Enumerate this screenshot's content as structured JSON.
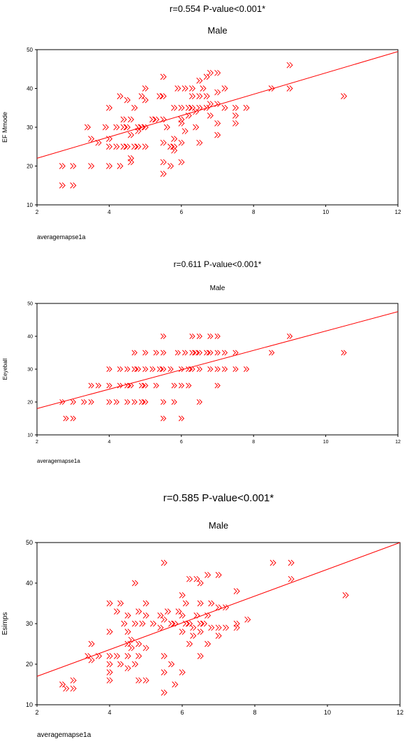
{
  "chart_data": [
    {
      "type": "scatter",
      "stat_line": "r=0.554     P-value<0.001*",
      "title": "Male",
      "xlabel": "averagemapse1a",
      "ylabel": "EF Mmode",
      "xlim": [
        2,
        12
      ],
      "ylim": [
        10,
        50
      ],
      "xticks": [
        "2",
        "4",
        "6",
        "8",
        "10",
        "12"
      ],
      "yticks": [
        "10",
        "20",
        "30",
        "40",
        "50"
      ],
      "color": "#ff0000",
      "fit_line": [
        [
          2,
          22
        ],
        [
          12,
          49.5
        ]
      ],
      "points": [
        [
          2.7,
          20
        ],
        [
          2.7,
          15
        ],
        [
          3,
          20
        ],
        [
          3,
          15
        ],
        [
          3.4,
          30
        ],
        [
          3.5,
          20
        ],
        [
          3.5,
          27
        ],
        [
          3.7,
          26
        ],
        [
          3.9,
          30
        ],
        [
          4,
          35
        ],
        [
          4,
          27
        ],
        [
          4,
          25
        ],
        [
          4,
          20
        ],
        [
          4.2,
          30
        ],
        [
          4.2,
          25
        ],
        [
          4.3,
          38
        ],
        [
          4.3,
          20
        ],
        [
          4.4,
          32
        ],
        [
          4.4,
          30
        ],
        [
          4.4,
          25
        ],
        [
          4.5,
          37
        ],
        [
          4.5,
          30
        ],
        [
          4.5,
          25
        ],
        [
          4.6,
          32
        ],
        [
          4.6,
          28
        ],
        [
          4.6,
          22
        ],
        [
          4.6,
          21
        ],
        [
          4.7,
          35
        ],
        [
          4.7,
          25
        ],
        [
          4.8,
          30
        ],
        [
          4.8,
          29
        ],
        [
          4.8,
          25
        ],
        [
          4.9,
          38
        ],
        [
          4.9,
          30
        ],
        [
          5,
          40
        ],
        [
          5,
          37
        ],
        [
          5,
          30
        ],
        [
          5,
          25
        ],
        [
          5.2,
          32
        ],
        [
          5.3,
          32
        ],
        [
          5.4,
          38
        ],
        [
          5.5,
          43
        ],
        [
          5.5,
          38
        ],
        [
          5.5,
          32
        ],
        [
          5.5,
          26
        ],
        [
          5.5,
          21
        ],
        [
          5.5,
          18
        ],
        [
          5.6,
          30
        ],
        [
          5.7,
          25
        ],
        [
          5.7,
          20
        ],
        [
          5.8,
          35
        ],
        [
          5.8,
          27
        ],
        [
          5.8,
          25
        ],
        [
          5.8,
          24
        ],
        [
          5.9,
          40
        ],
        [
          6,
          35
        ],
        [
          6,
          32
        ],
        [
          6,
          31
        ],
        [
          6,
          26
        ],
        [
          6,
          21
        ],
        [
          6.1,
          40
        ],
        [
          6.1,
          29
        ],
        [
          6.2,
          35
        ],
        [
          6.2,
          33
        ],
        [
          6.3,
          40
        ],
        [
          6.3,
          38
        ],
        [
          6.3,
          35
        ],
        [
          6.4,
          34
        ],
        [
          6.4,
          30
        ],
        [
          6.5,
          42
        ],
        [
          6.5,
          38
        ],
        [
          6.5,
          35
        ],
        [
          6.5,
          26
        ],
        [
          6.6,
          40
        ],
        [
          6.7,
          43
        ],
        [
          6.7,
          38
        ],
        [
          6.7,
          35
        ],
        [
          6.8,
          44
        ],
        [
          6.8,
          36
        ],
        [
          6.8,
          33
        ],
        [
          7,
          44
        ],
        [
          7,
          39
        ],
        [
          7,
          36
        ],
        [
          7,
          31
        ],
        [
          7,
          28
        ],
        [
          7.2,
          40
        ],
        [
          7.2,
          35
        ],
        [
          7.5,
          35
        ],
        [
          7.5,
          33
        ],
        [
          7.5,
          31
        ],
        [
          7.8,
          35
        ],
        [
          8.5,
          40
        ],
        [
          9,
          46
        ],
        [
          9,
          40
        ],
        [
          10.5,
          38
        ]
      ]
    },
    {
      "type": "scatter",
      "stat_line": "r=0.611     P-value<0.001*",
      "title": "Male",
      "xlabel": "averagemapse1a",
      "ylabel": "Eeyeball",
      "xlim": [
        2,
        12
      ],
      "ylim": [
        10,
        50
      ],
      "xticks": [
        "2",
        "4",
        "6",
        "8",
        "10",
        "12"
      ],
      "yticks": [
        "10",
        "20",
        "30",
        "40",
        "50"
      ],
      "color": "#ff0000",
      "fit_line": [
        [
          2,
          18
        ],
        [
          12,
          47.5
        ]
      ],
      "points": [
        [
          2.7,
          20
        ],
        [
          2.8,
          15
        ],
        [
          3,
          20
        ],
        [
          3,
          15
        ],
        [
          3.3,
          20
        ],
        [
          3.5,
          25
        ],
        [
          3.5,
          20
        ],
        [
          3.7,
          25
        ],
        [
          4,
          30
        ],
        [
          4,
          25
        ],
        [
          4,
          20
        ],
        [
          4.2,
          20
        ],
        [
          4.3,
          30
        ],
        [
          4.3,
          25
        ],
        [
          4.5,
          30
        ],
        [
          4.5,
          25
        ],
        [
          4.5,
          20
        ],
        [
          4.6,
          25
        ],
        [
          4.7,
          35
        ],
        [
          4.7,
          30
        ],
        [
          4.7,
          20
        ],
        [
          4.8,
          30
        ],
        [
          4.9,
          25
        ],
        [
          4.9,
          20
        ],
        [
          5,
          35
        ],
        [
          5,
          30
        ],
        [
          5,
          25
        ],
        [
          5,
          20
        ],
        [
          5.2,
          30
        ],
        [
          5.3,
          35
        ],
        [
          5.3,
          25
        ],
        [
          5.4,
          30
        ],
        [
          5.5,
          40
        ],
        [
          5.5,
          35
        ],
        [
          5.5,
          30
        ],
        [
          5.5,
          20
        ],
        [
          5.5,
          15
        ],
        [
          5.7,
          30
        ],
        [
          5.8,
          25
        ],
        [
          5.8,
          20
        ],
        [
          5.9,
          35
        ],
        [
          6,
          30
        ],
        [
          6,
          25
        ],
        [
          6,
          15
        ],
        [
          6.1,
          35
        ],
        [
          6.2,
          30
        ],
        [
          6.2,
          25
        ],
        [
          6.3,
          40
        ],
        [
          6.3,
          35
        ],
        [
          6.3,
          30
        ],
        [
          6.4,
          35
        ],
        [
          6.5,
          40
        ],
        [
          6.5,
          35
        ],
        [
          6.5,
          30
        ],
        [
          6.5,
          20
        ],
        [
          6.7,
          35
        ],
        [
          6.8,
          40
        ],
        [
          6.8,
          35
        ],
        [
          6.8,
          30
        ],
        [
          7,
          40
        ],
        [
          7,
          35
        ],
        [
          7,
          30
        ],
        [
          7,
          25
        ],
        [
          7.2,
          35
        ],
        [
          7.2,
          30
        ],
        [
          7.5,
          35
        ],
        [
          7.5,
          30
        ],
        [
          7.8,
          30
        ],
        [
          8.5,
          35
        ],
        [
          9,
          40
        ],
        [
          10.5,
          35
        ]
      ]
    },
    {
      "type": "scatter",
      "stat_line": "r=0.585     P-value<0.001*",
      "title": "Male",
      "xlabel": "averagemapse1a",
      "ylabel": "Esimps",
      "xlim": [
        2,
        12
      ],
      "ylim": [
        10,
        50
      ],
      "xticks": [
        "2",
        "4",
        "6",
        "8",
        "10",
        "12"
      ],
      "yticks": [
        "10",
        "20",
        "30",
        "40",
        "50"
      ],
      "color": "#ff0000",
      "fit_line": [
        [
          2,
          17
        ],
        [
          12,
          50
        ]
      ],
      "points": [
        [
          2.7,
          15
        ],
        [
          2.8,
          14
        ],
        [
          3,
          16
        ],
        [
          3,
          14
        ],
        [
          3.4,
          22
        ],
        [
          3.5,
          25
        ],
        [
          3.5,
          21
        ],
        [
          3.7,
          22
        ],
        [
          4,
          35
        ],
        [
          4,
          28
        ],
        [
          4,
          22
        ],
        [
          4,
          20
        ],
        [
          4,
          18
        ],
        [
          4,
          16
        ],
        [
          4.2,
          33
        ],
        [
          4.2,
          22
        ],
        [
          4.3,
          35
        ],
        [
          4.3,
          20
        ],
        [
          4.4,
          30
        ],
        [
          4.5,
          32
        ],
        [
          4.5,
          28
        ],
        [
          4.5,
          25
        ],
        [
          4.5,
          22
        ],
        [
          4.5,
          19
        ],
        [
          4.6,
          26
        ],
        [
          4.6,
          24
        ],
        [
          4.7,
          40
        ],
        [
          4.7,
          30
        ],
        [
          4.7,
          20
        ],
        [
          4.8,
          33
        ],
        [
          4.8,
          25
        ],
        [
          4.8,
          22
        ],
        [
          4.8,
          16
        ],
        [
          4.9,
          30
        ],
        [
          5,
          35
        ],
        [
          5,
          32
        ],
        [
          5,
          24
        ],
        [
          5,
          16
        ],
        [
          5.2,
          30
        ],
        [
          5.4,
          32
        ],
        [
          5.4,
          29
        ],
        [
          5.5,
          45
        ],
        [
          5.5,
          31
        ],
        [
          5.5,
          22
        ],
        [
          5.5,
          18
        ],
        [
          5.5,
          13
        ],
        [
          5.6,
          33
        ],
        [
          5.7,
          30
        ],
        [
          5.7,
          20
        ],
        [
          5.8,
          30
        ],
        [
          5.8,
          15
        ],
        [
          5.9,
          33
        ],
        [
          6,
          37
        ],
        [
          6,
          32
        ],
        [
          6,
          28
        ],
        [
          6,
          18
        ],
        [
          6.1,
          35
        ],
        [
          6.1,
          30
        ],
        [
          6.2,
          41
        ],
        [
          6.2,
          30
        ],
        [
          6.2,
          25
        ],
        [
          6.3,
          29
        ],
        [
          6.3,
          27
        ],
        [
          6.4,
          41
        ],
        [
          6.4,
          32
        ],
        [
          6.5,
          40
        ],
        [
          6.5,
          35
        ],
        [
          6.5,
          30
        ],
        [
          6.5,
          28
        ],
        [
          6.5,
          22
        ],
        [
          6.6,
          30
        ],
        [
          6.7,
          42
        ],
        [
          6.7,
          32
        ],
        [
          6.7,
          25
        ],
        [
          6.8,
          35
        ],
        [
          6.8,
          29
        ],
        [
          7,
          42
        ],
        [
          7,
          34
        ],
        [
          7,
          29
        ],
        [
          7,
          27
        ],
        [
          7.2,
          34
        ],
        [
          7.2,
          29
        ],
        [
          7.5,
          38
        ],
        [
          7.5,
          30
        ],
        [
          7.5,
          29
        ],
        [
          7.8,
          31
        ],
        [
          8.5,
          45
        ],
        [
          9,
          45
        ],
        [
          9,
          41
        ],
        [
          10.5,
          37
        ]
      ]
    }
  ]
}
